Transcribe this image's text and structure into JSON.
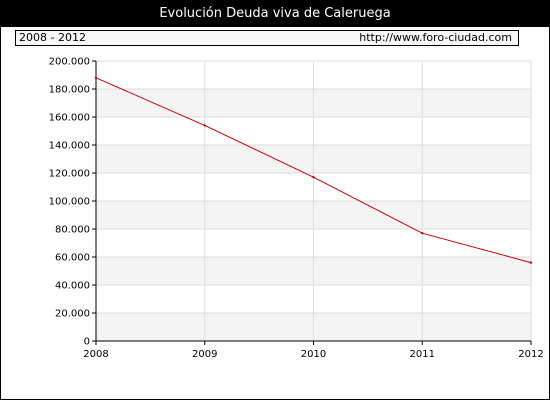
{
  "title": "Evolución Deuda viva de Caleruega",
  "range_label": "2008 - 2012",
  "source_url": "http://www.foro-ciudad.com",
  "colors": {
    "line": "#cc0000",
    "band": "#f4f4f4",
    "grid": "#dddddd",
    "header_bg": "#000000",
    "header_text": "#ffffff"
  },
  "chart_data": {
    "type": "line",
    "title": "Evolución Deuda viva de Caleruega",
    "x": [
      2008,
      2009,
      2010,
      2011,
      2012
    ],
    "x_tick_labels": [
      "2008",
      "2009",
      "2010",
      "2011",
      "2012"
    ],
    "series": [
      {
        "values": [
          188000,
          154000,
          117000,
          77000,
          56000
        ],
        "color": "#cc0000"
      }
    ],
    "ylim": [
      0,
      200000
    ],
    "y_ticks": [
      0,
      20000,
      40000,
      60000,
      80000,
      100000,
      120000,
      140000,
      160000,
      180000,
      200000
    ],
    "y_tick_labels": [
      "0",
      "20.000",
      "40.000",
      "60.000",
      "80.000",
      "100.000",
      "120.000",
      "140.000",
      "160.000",
      "180.000",
      "200.000"
    ],
    "xlabel": "",
    "ylabel": "",
    "grid": true,
    "legend": "none"
  }
}
